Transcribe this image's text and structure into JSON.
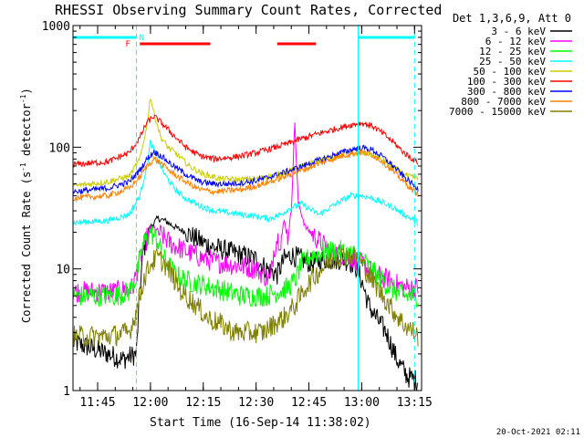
{
  "chart_data": {
    "type": "line",
    "title": "RHESSI Observing Summary Count Rates, Corrected",
    "xlabel": "Start Time (16-Sep-14 11:38:02)",
    "ylabel_main": "Corrected Count Rate (s",
    "ylabel_sup1": "-1",
    "ylabel_mid": " detector",
    "ylabel_sup2": "-1",
    "ylabel_end": ")",
    "y_scale": "log",
    "ylim": [
      1,
      1000
    ],
    "xlim_minutes": [
      38,
      137
    ],
    "x_ticks": [
      {
        "t": 45,
        "label": "11:45"
      },
      {
        "t": 60,
        "label": "12:00"
      },
      {
        "t": 75,
        "label": "12:15"
      },
      {
        "t": 90,
        "label": "12:30"
      },
      {
        "t": 105,
        "label": "12:45"
      },
      {
        "t": 120,
        "label": "13:00"
      },
      {
        "t": 135,
        "label": "13:15"
      }
    ],
    "y_ticks": [
      {
        "v": 1,
        "label": "1"
      },
      {
        "v": 10,
        "label": "10"
      },
      {
        "v": 100,
        "label": "100"
      },
      {
        "v": 1000,
        "label": "1000"
      }
    ],
    "legend_title": "Det 1,3,6,9, Att 0",
    "legend_position": "right",
    "series": [
      {
        "name": "3 - 6 keV",
        "color": "#000000",
        "points": [
          [
            38,
            2.5
          ],
          [
            48,
            2.0
          ],
          [
            52,
            1.8
          ],
          [
            56,
            2.0
          ],
          [
            57,
            7
          ],
          [
            58,
            14
          ],
          [
            60,
            22
          ],
          [
            62,
            26
          ],
          [
            64,
            25
          ],
          [
            67,
            22
          ],
          [
            70,
            20
          ],
          [
            74,
            17
          ],
          [
            78,
            15
          ],
          [
            82,
            14
          ],
          [
            86,
            13
          ],
          [
            90,
            12
          ],
          [
            93,
            10
          ],
          [
            96,
            9
          ],
          [
            98,
            12
          ],
          [
            100,
            13
          ],
          [
            103,
            12
          ],
          [
            106,
            11
          ],
          [
            109,
            12
          ],
          [
            112,
            12
          ],
          [
            115,
            12
          ],
          [
            118,
            11
          ],
          [
            120,
            8
          ],
          [
            122,
            5
          ],
          [
            124,
            4
          ],
          [
            127,
            3
          ],
          [
            130,
            1.8
          ],
          [
            133,
            1.3
          ],
          [
            136,
            1.2
          ]
        ]
      },
      {
        "name": "6 - 12 keV",
        "color": "#ff00ff",
        "points": [
          [
            38,
            6.5
          ],
          [
            50,
            6.5
          ],
          [
            55,
            7
          ],
          [
            57,
            12
          ],
          [
            59,
            18
          ],
          [
            61,
            22
          ],
          [
            63,
            19
          ],
          [
            66,
            16
          ],
          [
            70,
            14
          ],
          [
            74,
            12.5
          ],
          [
            78,
            11.5
          ],
          [
            82,
            11
          ],
          [
            86,
            10.5
          ],
          [
            90,
            10
          ],
          [
            92,
            9
          ],
          [
            94,
            8
          ],
          [
            95,
            14
          ],
          [
            96,
            18
          ],
          [
            97,
            17
          ],
          [
            98,
            25
          ],
          [
            99,
            18
          ],
          [
            100,
            30
          ],
          [
            101,
            160
          ],
          [
            101.5,
            70
          ],
          [
            102,
            35
          ],
          [
            104,
            22
          ],
          [
            107,
            18
          ],
          [
            111,
            14
          ],
          [
            115,
            13
          ],
          [
            118,
            12
          ],
          [
            120,
            11
          ],
          [
            124,
            9
          ],
          [
            128,
            8
          ],
          [
            132,
            7
          ],
          [
            136,
            7
          ]
        ]
      },
      {
        "name": "12 - 25 keV",
        "color": "#00ff00",
        "points": [
          [
            38,
            6
          ],
          [
            50,
            6
          ],
          [
            54,
            6.5
          ],
          [
            56,
            8.5
          ],
          [
            58,
            16
          ],
          [
            60,
            20
          ],
          [
            62,
            17
          ],
          [
            64,
            12
          ],
          [
            67,
            9
          ],
          [
            70,
            8
          ],
          [
            74,
            7.5
          ],
          [
            78,
            7
          ],
          [
            82,
            6.5
          ],
          [
            86,
            6
          ],
          [
            90,
            6
          ],
          [
            93,
            6
          ],
          [
            96,
            6.5
          ],
          [
            99,
            7
          ],
          [
            101,
            8
          ],
          [
            103,
            11
          ],
          [
            106,
            13
          ],
          [
            110,
            14
          ],
          [
            114,
            14
          ],
          [
            118,
            13
          ],
          [
            120,
            12
          ],
          [
            124,
            9
          ],
          [
            128,
            7
          ],
          [
            132,
            6
          ],
          [
            136,
            6
          ]
        ]
      },
      {
        "name": "25 - 50 keV",
        "color": "#00ffff",
        "points": [
          [
            38,
            24
          ],
          [
            48,
            25
          ],
          [
            54,
            28
          ],
          [
            57,
            40
          ],
          [
            59,
            70
          ],
          [
            60,
            110
          ],
          [
            61,
            95
          ],
          [
            62,
            80
          ],
          [
            64,
            60
          ],
          [
            67,
            45
          ],
          [
            70,
            38
          ],
          [
            74,
            33
          ],
          [
            78,
            30
          ],
          [
            82,
            29
          ],
          [
            86,
            28
          ],
          [
            90,
            27
          ],
          [
            94,
            26
          ],
          [
            97,
            28
          ],
          [
            100,
            32
          ],
          [
            103,
            34
          ],
          [
            106,
            30
          ],
          [
            108,
            28
          ],
          [
            111,
            32
          ],
          [
            114,
            36
          ],
          [
            117,
            40
          ],
          [
            120,
            40
          ],
          [
            123,
            38
          ],
          [
            126,
            35
          ],
          [
            129,
            32
          ],
          [
            132,
            28
          ],
          [
            135,
            25
          ],
          [
            136,
            24
          ]
        ]
      },
      {
        "name": "50 - 100 keV",
        "color": "#cccc00",
        "points": [
          [
            38,
            48
          ],
          [
            48,
            52
          ],
          [
            54,
            58
          ],
          [
            57,
            80
          ],
          [
            59,
            150
          ],
          [
            60,
            260
          ],
          [
            61,
            190
          ],
          [
            63,
            120
          ],
          [
            65,
            100
          ],
          [
            68,
            85
          ],
          [
            71,
            70
          ],
          [
            75,
            60
          ],
          [
            80,
            55
          ],
          [
            85,
            54
          ],
          [
            90,
            55
          ],
          [
            94,
            58
          ],
          [
            98,
            62
          ],
          [
            102,
            68
          ],
          [
            106,
            74
          ],
          [
            110,
            80
          ],
          [
            114,
            86
          ],
          [
            118,
            89
          ],
          [
            122,
            88
          ],
          [
            126,
            78
          ],
          [
            130,
            65
          ],
          [
            133,
            58
          ],
          [
            136,
            55
          ]
        ]
      },
      {
        "name": "100 - 300 keV",
        "color": "#ff0000",
        "points": [
          [
            38,
            72
          ],
          [
            48,
            76
          ],
          [
            54,
            90
          ],
          [
            57,
            120
          ],
          [
            59,
            160
          ],
          [
            61,
            180
          ],
          [
            63,
            160
          ],
          [
            66,
            130
          ],
          [
            70,
            100
          ],
          [
            74,
            85
          ],
          [
            78,
            80
          ],
          [
            82,
            82
          ],
          [
            86,
            85
          ],
          [
            90,
            90
          ],
          [
            94,
            97
          ],
          [
            98,
            105
          ],
          [
            102,
            115
          ],
          [
            106,
            125
          ],
          [
            110,
            135
          ],
          [
            114,
            145
          ],
          [
            118,
            155
          ],
          [
            120,
            158
          ],
          [
            123,
            150
          ],
          [
            126,
            130
          ],
          [
            129,
            110
          ],
          [
            132,
            90
          ],
          [
            135,
            78
          ],
          [
            136,
            75
          ]
        ]
      },
      {
        "name": "300 - 800 keV",
        "color": "#0000ff",
        "points": [
          [
            38,
            43
          ],
          [
            48,
            46
          ],
          [
            54,
            52
          ],
          [
            57,
            65
          ],
          [
            59,
            80
          ],
          [
            61,
            92
          ],
          [
            63,
            85
          ],
          [
            66,
            72
          ],
          [
            70,
            60
          ],
          [
            74,
            52
          ],
          [
            78,
            50
          ],
          [
            82,
            50
          ],
          [
            86,
            51
          ],
          [
            90,
            53
          ],
          [
            94,
            57
          ],
          [
            98,
            62
          ],
          [
            102,
            68
          ],
          [
            106,
            75
          ],
          [
            110,
            82
          ],
          [
            114,
            90
          ],
          [
            118,
            97
          ],
          [
            120,
            99
          ],
          [
            123,
            95
          ],
          [
            126,
            83
          ],
          [
            129,
            70
          ],
          [
            132,
            57
          ],
          [
            135,
            48
          ],
          [
            136,
            46
          ]
        ]
      },
      {
        "name": "800 - 7000 keV",
        "color": "#ff8000",
        "points": [
          [
            38,
            38
          ],
          [
            48,
            40
          ],
          [
            54,
            46
          ],
          [
            57,
            57
          ],
          [
            59,
            70
          ],
          [
            61,
            80
          ],
          [
            63,
            74
          ],
          [
            66,
            62
          ],
          [
            70,
            52
          ],
          [
            74,
            45
          ],
          [
            78,
            43
          ],
          [
            82,
            44
          ],
          [
            86,
            45
          ],
          [
            90,
            48
          ],
          [
            94,
            52
          ],
          [
            98,
            57
          ],
          [
            102,
            63
          ],
          [
            106,
            70
          ],
          [
            110,
            77
          ],
          [
            114,
            84
          ],
          [
            118,
            90
          ],
          [
            120,
            91
          ],
          [
            123,
            87
          ],
          [
            126,
            76
          ],
          [
            129,
            63
          ],
          [
            132,
            52
          ],
          [
            135,
            43
          ],
          [
            136,
            41
          ]
        ]
      },
      {
        "name": "7000 - 15000 keV",
        "color": "#808000",
        "points": [
          [
            38,
            2.8
          ],
          [
            48,
            2.8
          ],
          [
            54,
            3
          ],
          [
            56,
            4.5
          ],
          [
            58,
            8
          ],
          [
            60,
            11
          ],
          [
            62,
            12.5
          ],
          [
            64,
            11
          ],
          [
            66,
            9
          ],
          [
            68,
            7
          ],
          [
            70,
            6
          ],
          [
            73,
            5
          ],
          [
            76,
            4
          ],
          [
            80,
            3.5
          ],
          [
            84,
            3
          ],
          [
            88,
            3
          ],
          [
            92,
            3
          ],
          [
            95,
            3.5
          ],
          [
            98,
            4
          ],
          [
            101,
            5
          ],
          [
            104,
            7
          ],
          [
            107,
            9
          ],
          [
            110,
            11
          ],
          [
            113,
            12.5
          ],
          [
            116,
            13
          ],
          [
            118,
            12.5
          ],
          [
            120,
            11
          ],
          [
            123,
            8
          ],
          [
            126,
            6
          ],
          [
            129,
            4.5
          ],
          [
            132,
            3.5
          ],
          [
            135,
            3
          ],
          [
            136,
            2.8
          ]
        ]
      }
    ],
    "annotations": {
      "flag_N_label": "N",
      "flag_F_label": "F",
      "night_segments": [
        [
          38,
          56
        ],
        [
          119,
          135
        ]
      ],
      "flare_segments": [
        [
          57,
          77
        ],
        [
          96,
          107
        ]
      ],
      "vertical_lines": [
        {
          "t": 56,
          "style": "dashed"
        },
        {
          "t": 119,
          "style": "solid"
        },
        {
          "t": 135,
          "style": "dashed"
        }
      ],
      "night_color": "#00ffff",
      "flare_color": "#ff0000"
    },
    "timestamp": "20-Oct-2021 02:11"
  }
}
